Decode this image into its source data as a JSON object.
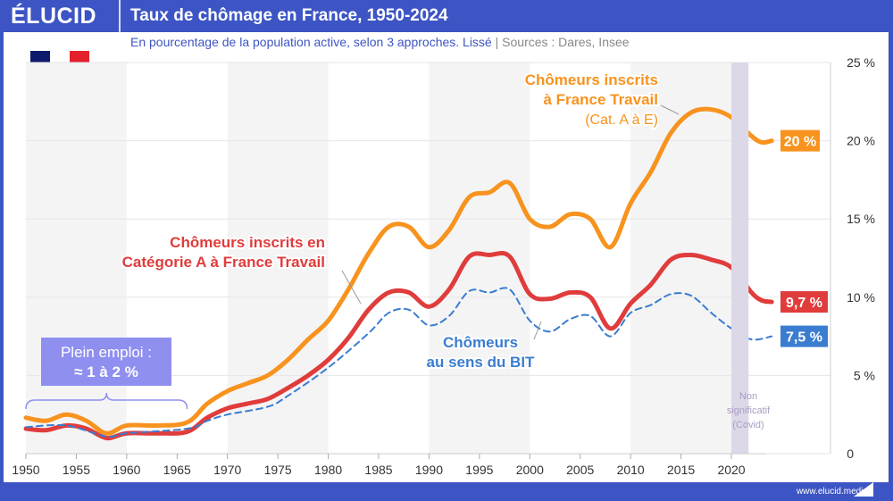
{
  "header": {
    "logo": "ÉLUCID",
    "title": "Taux de chômage en France, 1950-2024",
    "subtitle": "En pourcentage de la population active, selon 3 approches. Lissé",
    "separator": "|",
    "sources": "Sources : Dares, Insee",
    "footer": "www.elucid.media"
  },
  "colors": {
    "brand": "#3d55c4",
    "orange": "#f7931e",
    "red": "#e03c3c",
    "blue": "#3a7dd0",
    "covid": "#ddd8e8",
    "fullEmployment": "#8f8ff0"
  },
  "chart_data": {
    "type": "line",
    "xlim": [
      1950,
      2024
    ],
    "ylim": [
      0,
      25
    ],
    "x_ticks": [
      1950,
      1955,
      1960,
      1965,
      1970,
      1975,
      1980,
      1985,
      1990,
      1995,
      2000,
      2005,
      2010,
      2015,
      2020
    ],
    "y_ticks": [
      {
        "v": 0,
        "label": "0"
      },
      {
        "v": 5,
        "label": "5 %"
      },
      {
        "v": 10,
        "label": "10 %"
      },
      {
        "v": 15,
        "label": "15 %"
      },
      {
        "v": 20,
        "label": "20 %"
      },
      {
        "v": 25,
        "label": "25 %"
      }
    ],
    "grid": true,
    "series": [
      {
        "name": "Chômeurs inscrits à France Travail (Cat. A à E)",
        "color": "orange",
        "style": "solid",
        "end_label": "20 %",
        "points": [
          [
            1950,
            2.3
          ],
          [
            1952,
            2.1
          ],
          [
            1954,
            2.5
          ],
          [
            1956,
            2.1
          ],
          [
            1958,
            1.3
          ],
          [
            1960,
            1.8
          ],
          [
            1963,
            1.8
          ],
          [
            1966,
            2.0
          ],
          [
            1968,
            3.2
          ],
          [
            1970,
            4.0
          ],
          [
            1972,
            4.5
          ],
          [
            1974,
            5.0
          ],
          [
            1976,
            6.0
          ],
          [
            1978,
            7.3
          ],
          [
            1980,
            8.5
          ],
          [
            1982,
            10.5
          ],
          [
            1984,
            12.8
          ],
          [
            1986,
            14.5
          ],
          [
            1988,
            14.5
          ],
          [
            1990,
            13.2
          ],
          [
            1992,
            14.3
          ],
          [
            1994,
            16.4
          ],
          [
            1996,
            16.7
          ],
          [
            1998,
            17.3
          ],
          [
            2000,
            15.0
          ],
          [
            2002,
            14.5
          ],
          [
            2004,
            15.3
          ],
          [
            2006,
            15.0
          ],
          [
            2008,
            13.2
          ],
          [
            2010,
            16.0
          ],
          [
            2012,
            18.0
          ],
          [
            2014,
            20.5
          ],
          [
            2016,
            21.8
          ],
          [
            2018,
            22.0
          ],
          [
            2020,
            21.5
          ],
          [
            2022,
            20.3
          ],
          [
            2023,
            19.9
          ],
          [
            2024,
            20.0
          ]
        ]
      },
      {
        "name": "Chômeurs inscrits en Catégorie A à France Travail",
        "color": "red",
        "style": "solid",
        "end_label": "9,7 %",
        "points": [
          [
            1950,
            1.6
          ],
          [
            1952,
            1.5
          ],
          [
            1954,
            1.8
          ],
          [
            1956,
            1.6
          ],
          [
            1958,
            1.0
          ],
          [
            1960,
            1.3
          ],
          [
            1963,
            1.3
          ],
          [
            1966,
            1.4
          ],
          [
            1968,
            2.3
          ],
          [
            1970,
            2.9
          ],
          [
            1972,
            3.2
          ],
          [
            1974,
            3.5
          ],
          [
            1976,
            4.2
          ],
          [
            1978,
            5.0
          ],
          [
            1980,
            6.0
          ],
          [
            1982,
            7.4
          ],
          [
            1984,
            9.2
          ],
          [
            1986,
            10.3
          ],
          [
            1988,
            10.3
          ],
          [
            1990,
            9.4
          ],
          [
            1992,
            10.5
          ],
          [
            1994,
            12.6
          ],
          [
            1996,
            12.7
          ],
          [
            1998,
            12.6
          ],
          [
            2000,
            10.2
          ],
          [
            2002,
            9.9
          ],
          [
            2004,
            10.3
          ],
          [
            2006,
            10.0
          ],
          [
            2008,
            8.0
          ],
          [
            2010,
            9.6
          ],
          [
            2012,
            10.8
          ],
          [
            2014,
            12.4
          ],
          [
            2016,
            12.7
          ],
          [
            2018,
            12.4
          ],
          [
            2020,
            11.9
          ],
          [
            2022,
            10.3
          ],
          [
            2023,
            9.8
          ],
          [
            2024,
            9.7
          ]
        ]
      },
      {
        "name": "Chômeurs au sens du BIT",
        "color": "blue",
        "style": "dashed",
        "end_label": "7,5 %",
        "points": [
          [
            1950,
            1.7
          ],
          [
            1954,
            1.8
          ],
          [
            1958,
            1.1
          ],
          [
            1960,
            1.3
          ],
          [
            1966,
            1.6
          ],
          [
            1968,
            2.1
          ],
          [
            1970,
            2.5
          ],
          [
            1974,
            3.0
          ],
          [
            1976,
            3.7
          ],
          [
            1980,
            5.5
          ],
          [
            1984,
            7.7
          ],
          [
            1986,
            9.0
          ],
          [
            1988,
            9.2
          ],
          [
            1990,
            8.2
          ],
          [
            1992,
            8.8
          ],
          [
            1994,
            10.4
          ],
          [
            1996,
            10.3
          ],
          [
            1998,
            10.5
          ],
          [
            2000,
            8.5
          ],
          [
            2002,
            7.8
          ],
          [
            2004,
            8.6
          ],
          [
            2006,
            8.8
          ],
          [
            2008,
            7.5
          ],
          [
            2010,
            9.0
          ],
          [
            2012,
            9.5
          ],
          [
            2014,
            10.2
          ],
          [
            2016,
            10.1
          ],
          [
            2018,
            9.0
          ],
          [
            2020,
            8.0
          ],
          [
            2022,
            7.3
          ],
          [
            2024,
            7.5
          ]
        ]
      }
    ],
    "covid_band": [
      2020,
      2021.7
    ],
    "annotations": {
      "orange_label": [
        "Chômeurs inscrits",
        "à France Travail",
        "(Cat. A à E)"
      ],
      "red_label": [
        "Chômeurs inscrits en",
        "Catégorie A à France Travail"
      ],
      "blue_label": [
        "Chômeurs",
        "au sens du BIT"
      ],
      "full_employment": [
        "Plein emploi :",
        "≈ 1 à 2 %"
      ],
      "full_employment_range": [
        1950,
        1966
      ],
      "covid": [
        "Non",
        "significatif",
        "(Covid)"
      ]
    }
  }
}
